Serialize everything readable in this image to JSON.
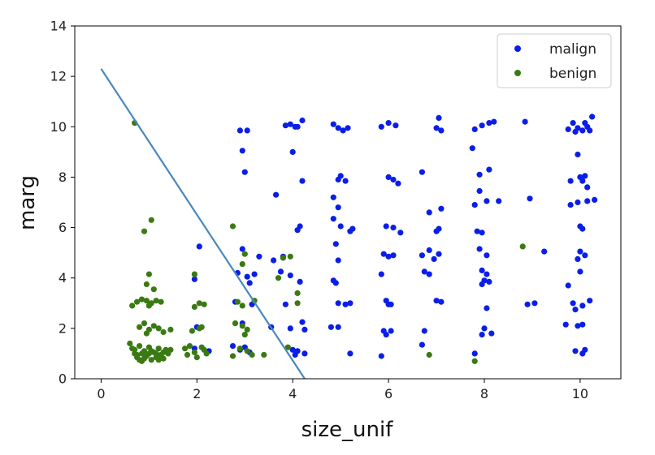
{
  "chart_data": {
    "type": "scatter",
    "xlabel": "size_unif",
    "ylabel": "marg",
    "xlim": [
      -0.55,
      10.85
    ],
    "ylim": [
      0,
      14
    ],
    "x_ticks": [
      0,
      2,
      4,
      6,
      8,
      10
    ],
    "y_ticks": [
      0,
      2,
      4,
      6,
      8,
      10,
      12,
      14
    ],
    "x_tick_labels": [
      "0",
      "2",
      "4",
      "6",
      "8",
      "10"
    ],
    "y_tick_labels": [
      "0",
      "2",
      "4",
      "6",
      "8",
      "10",
      "12",
      "14"
    ],
    "grid": false,
    "legend_position": "top-right",
    "decision_line": {
      "x": [
        0,
        4.25
      ],
      "y": [
        12.3,
        0
      ],
      "color": "#4a87bd"
    },
    "series": [
      {
        "name": "malign",
        "color": "#0a1ee8",
        "points": [
          [
            2.05,
            5.25
          ],
          [
            1.95,
            3.95
          ],
          [
            2.0,
            2.05
          ],
          [
            2.25,
            1.1
          ],
          [
            1.95,
            1.2
          ],
          [
            2.9,
            9.85
          ],
          [
            3.05,
            9.85
          ],
          [
            2.95,
            9.05
          ],
          [
            3.0,
            8.2
          ],
          [
            2.95,
            5.15
          ],
          [
            2.85,
            4.2
          ],
          [
            3.05,
            4.05
          ],
          [
            3.2,
            4.15
          ],
          [
            3.1,
            3.8
          ],
          [
            2.8,
            3.05
          ],
          [
            3.15,
            2.95
          ],
          [
            2.75,
            1.3
          ],
          [
            2.9,
            1.15
          ],
          [
            3.1,
            1.05
          ],
          [
            3.0,
            1.25
          ],
          [
            2.95,
            2.2
          ],
          [
            3.85,
            10.05
          ],
          [
            3.95,
            10.1
          ],
          [
            4.05,
            10.0
          ],
          [
            4.2,
            10.25
          ],
          [
            4.1,
            10.0
          ],
          [
            4.0,
            9.0
          ],
          [
            4.2,
            7.85
          ],
          [
            3.65,
            7.3
          ],
          [
            4.15,
            6.05
          ],
          [
            4.1,
            5.9
          ],
          [
            3.8,
            4.85
          ],
          [
            3.6,
            4.7
          ],
          [
            3.75,
            4.25
          ],
          [
            3.95,
            4.1
          ],
          [
            4.15,
            3.85
          ],
          [
            3.85,
            2.95
          ],
          [
            4.2,
            2.25
          ],
          [
            4.25,
            1.95
          ],
          [
            3.95,
            2.0
          ],
          [
            4.1,
            1.1
          ],
          [
            4.0,
            1.15
          ],
          [
            4.25,
            1.0
          ],
          [
            4.05,
            0.95
          ],
          [
            3.3,
            4.85
          ],
          [
            3.55,
            2.05
          ],
          [
            4.85,
            10.1
          ],
          [
            4.95,
            9.95
          ],
          [
            5.05,
            9.85
          ],
          [
            5.15,
            9.95
          ],
          [
            5.0,
            8.05
          ],
          [
            4.95,
            7.9
          ],
          [
            5.1,
            7.85
          ],
          [
            4.85,
            7.2
          ],
          [
            4.95,
            6.8
          ],
          [
            4.85,
            6.35
          ],
          [
            5.0,
            6.05
          ],
          [
            5.25,
            5.95
          ],
          [
            5.2,
            5.85
          ],
          [
            4.9,
            5.35
          ],
          [
            4.95,
            4.7
          ],
          [
            4.85,
            3.9
          ],
          [
            4.9,
            3.8
          ],
          [
            4.95,
            3.0
          ],
          [
            5.1,
            2.95
          ],
          [
            5.2,
            3.0
          ],
          [
            4.8,
            2.05
          ],
          [
            4.95,
            2.05
          ],
          [
            5.2,
            1.0
          ],
          [
            5.85,
            10.0
          ],
          [
            6.0,
            10.15
          ],
          [
            6.15,
            10.05
          ],
          [
            6.0,
            8.0
          ],
          [
            6.1,
            7.9
          ],
          [
            6.2,
            7.75
          ],
          [
            5.95,
            6.05
          ],
          [
            6.1,
            6.0
          ],
          [
            6.25,
            5.8
          ],
          [
            5.9,
            4.95
          ],
          [
            6.0,
            4.85
          ],
          [
            6.1,
            4.9
          ],
          [
            5.85,
            4.15
          ],
          [
            5.95,
            3.1
          ],
          [
            6.05,
            2.95
          ],
          [
            6.0,
            2.95
          ],
          [
            5.9,
            1.9
          ],
          [
            6.05,
            1.9
          ],
          [
            5.95,
            1.75
          ],
          [
            5.85,
            0.9
          ],
          [
            6.7,
            8.2
          ],
          [
            7.05,
            10.35
          ],
          [
            7.0,
            9.95
          ],
          [
            7.1,
            9.85
          ],
          [
            6.85,
            6.6
          ],
          [
            7.1,
            6.75
          ],
          [
            7.05,
            5.95
          ],
          [
            7.0,
            5.85
          ],
          [
            6.85,
            5.1
          ],
          [
            7.05,
            4.95
          ],
          [
            6.7,
            4.9
          ],
          [
            6.75,
            4.25
          ],
          [
            6.85,
            4.15
          ],
          [
            6.95,
            4.75
          ],
          [
            7.0,
            3.1
          ],
          [
            7.1,
            3.05
          ],
          [
            6.75,
            1.9
          ],
          [
            6.7,
            1.35
          ],
          [
            7.8,
            9.9
          ],
          [
            7.95,
            10.05
          ],
          [
            8.1,
            10.15
          ],
          [
            8.2,
            10.2
          ],
          [
            7.75,
            9.15
          ],
          [
            7.9,
            8.1
          ],
          [
            8.1,
            8.3
          ],
          [
            7.9,
            7.45
          ],
          [
            8.05,
            7.05
          ],
          [
            7.8,
            6.9
          ],
          [
            8.3,
            7.05
          ],
          [
            7.85,
            5.85
          ],
          [
            7.95,
            5.8
          ],
          [
            7.9,
            5.15
          ],
          [
            8.05,
            4.9
          ],
          [
            7.95,
            4.3
          ],
          [
            8.05,
            4.15
          ],
          [
            8.0,
            3.9
          ],
          [
            8.1,
            3.85
          ],
          [
            7.95,
            3.75
          ],
          [
            8.05,
            2.8
          ],
          [
            8.0,
            2.0
          ],
          [
            8.15,
            1.8
          ],
          [
            7.95,
            1.75
          ],
          [
            7.8,
            1.0
          ],
          [
            8.85,
            10.2
          ],
          [
            8.95,
            7.15
          ],
          [
            9.25,
            5.05
          ],
          [
            8.9,
            2.95
          ],
          [
            9.05,
            3.0
          ],
          [
            9.75,
            9.9
          ],
          [
            9.85,
            10.15
          ],
          [
            9.95,
            9.95
          ],
          [
            10.05,
            9.85
          ],
          [
            10.15,
            10.0
          ],
          [
            10.2,
            9.85
          ],
          [
            9.9,
            9.8
          ],
          [
            10.1,
            10.15
          ],
          [
            10.25,
            10.4
          ],
          [
            9.95,
            8.9
          ],
          [
            10.0,
            8.0
          ],
          [
            10.1,
            8.05
          ],
          [
            10.05,
            7.85
          ],
          [
            9.8,
            7.85
          ],
          [
            10.15,
            7.6
          ],
          [
            10.3,
            7.1
          ],
          [
            9.8,
            6.9
          ],
          [
            9.95,
            7.0
          ],
          [
            10.15,
            7.05
          ],
          [
            10.0,
            6.05
          ],
          [
            10.05,
            5.95
          ],
          [
            10.0,
            5.05
          ],
          [
            10.1,
            4.9
          ],
          [
            9.95,
            4.75
          ],
          [
            10.0,
            4.25
          ],
          [
            9.75,
            3.7
          ],
          [
            9.85,
            3.0
          ],
          [
            9.9,
            2.75
          ],
          [
            10.05,
            2.9
          ],
          [
            10.2,
            3.1
          ],
          [
            9.7,
            2.15
          ],
          [
            9.95,
            2.1
          ],
          [
            10.05,
            2.15
          ],
          [
            9.9,
            1.1
          ],
          [
            10.05,
            1.0
          ],
          [
            10.1,
            1.15
          ]
        ]
      },
      {
        "name": "benign",
        "color": "#3a7a12",
        "points": [
          [
            0.7,
            10.15
          ],
          [
            1.05,
            6.3
          ],
          [
            0.9,
            5.85
          ],
          [
            1.0,
            4.15
          ],
          [
            0.95,
            3.75
          ],
          [
            1.1,
            3.55
          ],
          [
            0.65,
            2.9
          ],
          [
            0.75,
            3.05
          ],
          [
            0.85,
            3.15
          ],
          [
            0.95,
            3.1
          ],
          [
            1.05,
            3.0
          ],
          [
            1.15,
            3.1
          ],
          [
            1.25,
            3.05
          ],
          [
            1.0,
            2.9
          ],
          [
            0.8,
            2.05
          ],
          [
            0.9,
            2.2
          ],
          [
            1.0,
            1.95
          ],
          [
            1.1,
            2.1
          ],
          [
            1.2,
            2.0
          ],
          [
            1.3,
            1.85
          ],
          [
            0.95,
            1.8
          ],
          [
            1.45,
            1.95
          ],
          [
            0.6,
            1.4
          ],
          [
            0.65,
            1.2
          ],
          [
            0.7,
            1.0
          ],
          [
            0.75,
            0.85
          ],
          [
            0.8,
            1.3
          ],
          [
            0.85,
            0.7
          ],
          [
            0.9,
            1.1
          ],
          [
            0.95,
            0.9
          ],
          [
            1.0,
            1.25
          ],
          [
            1.05,
            0.75
          ],
          [
            1.1,
            1.05
          ],
          [
            1.15,
            0.85
          ],
          [
            1.2,
            1.2
          ],
          [
            1.25,
            0.95
          ],
          [
            1.3,
            0.8
          ],
          [
            1.35,
            1.15
          ],
          [
            1.4,
            1.0
          ],
          [
            0.7,
            1.15
          ],
          [
            0.85,
            1.0
          ],
          [
            1.0,
            1.0
          ],
          [
            1.15,
            1.0
          ],
          [
            1.3,
            1.05
          ],
          [
            1.45,
            1.15
          ],
          [
            0.75,
            0.95
          ],
          [
            0.9,
            0.8
          ],
          [
            1.05,
            1.1
          ],
          [
            1.2,
            0.75
          ],
          [
            0.8,
            0.75
          ],
          [
            1.95,
            4.15
          ],
          [
            2.05,
            3.0
          ],
          [
            1.95,
            2.85
          ],
          [
            2.15,
            2.95
          ],
          [
            2.05,
            2.0
          ],
          [
            1.9,
            1.9
          ],
          [
            2.1,
            2.05
          ],
          [
            1.75,
            1.2
          ],
          [
            1.85,
            1.3
          ],
          [
            1.95,
            1.05
          ],
          [
            2.0,
            0.85
          ],
          [
            2.1,
            1.25
          ],
          [
            2.2,
            1.0
          ],
          [
            1.8,
            0.95
          ],
          [
            2.15,
            1.15
          ],
          [
            2.75,
            6.05
          ],
          [
            3.0,
            4.95
          ],
          [
            2.95,
            4.55
          ],
          [
            2.85,
            3.05
          ],
          [
            2.95,
            2.9
          ],
          [
            2.8,
            2.2
          ],
          [
            2.95,
            2.1
          ],
          [
            3.05,
            1.95
          ],
          [
            3.0,
            1.75
          ],
          [
            2.75,
            0.9
          ],
          [
            2.9,
            1.2
          ],
          [
            3.05,
            1.1
          ],
          [
            3.15,
            0.95
          ],
          [
            3.2,
            3.1
          ],
          [
            3.4,
            0.95
          ],
          [
            3.8,
            4.8
          ],
          [
            3.95,
            4.85
          ],
          [
            3.7,
            4.0
          ],
          [
            4.1,
            3.4
          ],
          [
            4.1,
            3.0
          ],
          [
            3.9,
            1.25
          ],
          [
            6.85,
            0.95
          ],
          [
            7.8,
            0.7
          ],
          [
            8.8,
            5.25
          ]
        ]
      }
    ]
  }
}
